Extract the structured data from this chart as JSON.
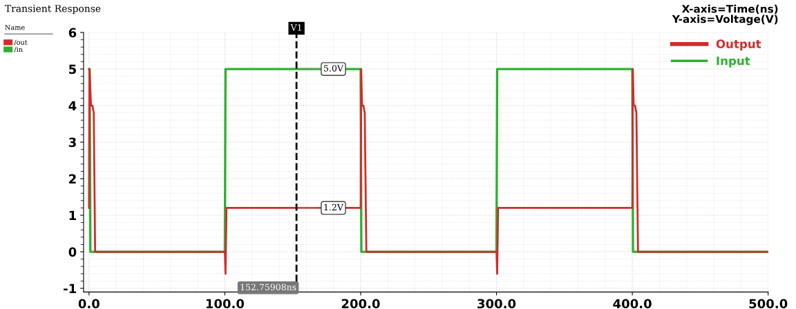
{
  "chart_data": {
    "type": "line",
    "title": "Transient Response",
    "x": [
      0,
      0.5,
      1,
      100,
      100.5,
      200,
      200.5,
      300,
      300.5,
      400,
      400.5,
      500
    ],
    "series": [
      {
        "name": "Output",
        "color": "#d42a2a",
        "x": [
          0,
          0.3,
          1.5,
          2.5,
          3.5,
          4.5,
          100,
          100.5,
          101.2,
          200,
          200.4,
          201,
          202,
          203,
          204.2,
          300,
          300.5,
          301.2,
          400,
          400.4,
          401,
          402,
          403,
          404.2,
          500
        ],
        "values": [
          1.2,
          5,
          4,
          4,
          3.8,
          0,
          0,
          -0.6,
          1.2,
          1.2,
          5,
          4,
          4,
          3.8,
          0,
          0,
          -0.6,
          1.2,
          1.2,
          5,
          4,
          4,
          3.8,
          0,
          0
        ]
      },
      {
        "name": "Input",
        "color": "#2eb02e",
        "values": [
          5,
          5,
          0,
          0,
          5,
          5,
          0,
          0,
          5,
          5,
          0,
          0
        ]
      }
    ],
    "xlim": [
      -4,
      500
    ],
    "ylim": [
      -1.1,
      6
    ],
    "xticks": [
      {
        "value": 0,
        "label": "0.0"
      },
      {
        "value": 100,
        "label": "100.0"
      },
      {
        "value": 200,
        "label": "200.0"
      },
      {
        "value": 300,
        "label": "300.0"
      },
      {
        "value": 400,
        "label": "400.0"
      },
      {
        "value": 500,
        "label": "500.0"
      }
    ],
    "yticks": [
      -1,
      0,
      1,
      2,
      3,
      4,
      5,
      6
    ],
    "grid": true,
    "legend": "top right",
    "line_style": "solid",
    "ref_lines": [
      {
        "axis": "x",
        "value": 152.75908,
        "label": "V1",
        "color": "#000000",
        "line_style": "dashed"
      }
    ],
    "annotations": [
      {
        "text": "5.0V",
        "x": 152.75908,
        "y": 5
      },
      {
        "text": "1.2V",
        "x": 152.75908,
        "y": 1.2
      },
      "152.75908ns",
      "X-axis=Time(ns)",
      "Y-axis=Voltage(V)",
      "Name",
      "/out",
      "/in"
    ]
  }
}
